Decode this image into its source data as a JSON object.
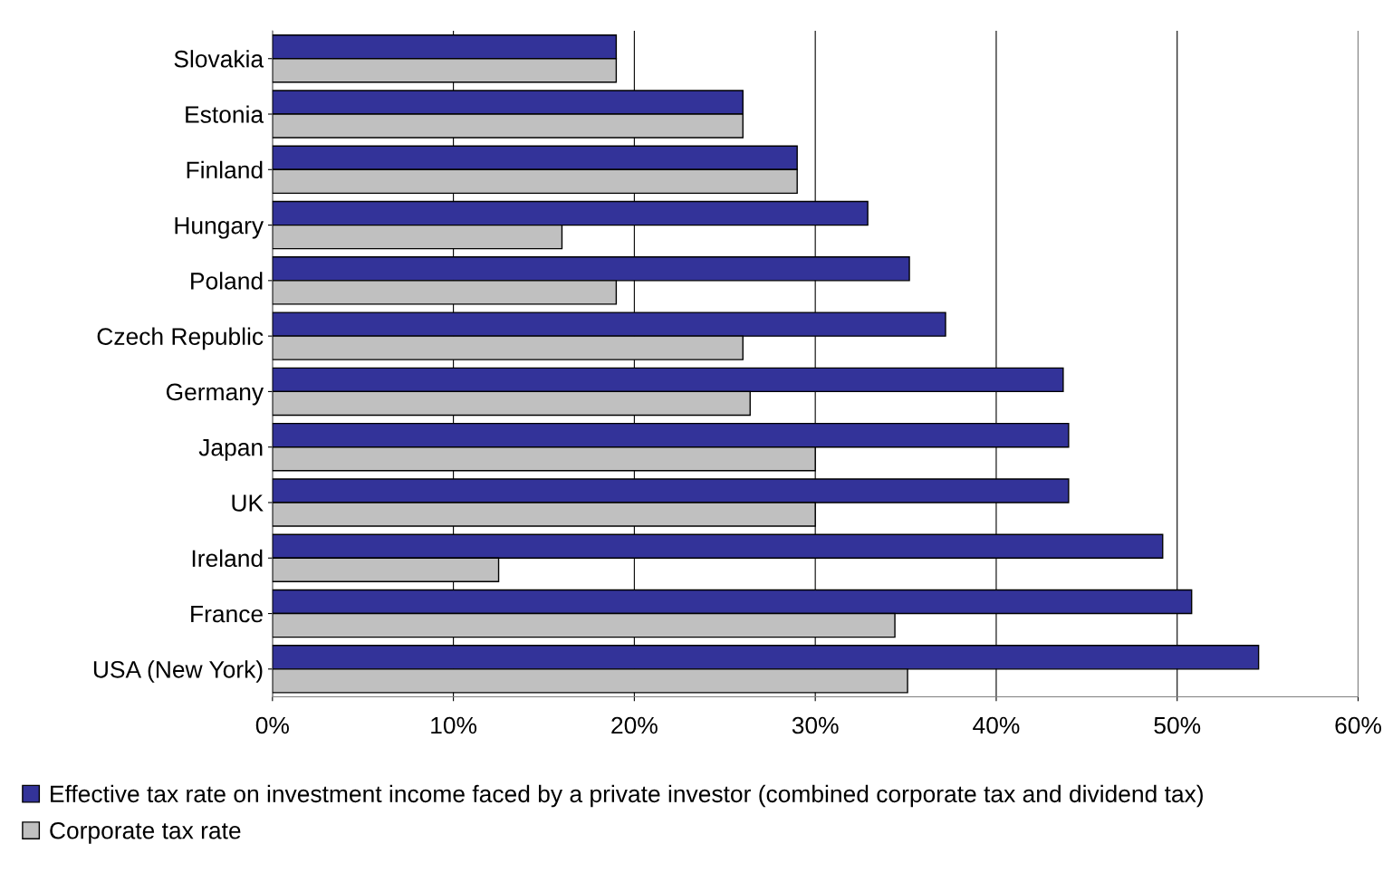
{
  "chart_data": {
    "type": "bar",
    "orientation": "horizontal",
    "categories": [
      "Slovakia",
      "Estonia",
      "Finland",
      "Hungary",
      "Poland",
      "Czech Republic",
      "Germany",
      "Japan",
      "UK",
      "Ireland",
      "France",
      "USA (New York)"
    ],
    "series": [
      {
        "name": "Effective tax rate on investment income faced by a private investor (combined corporate tax and dividend tax)",
        "color": "#333399",
        "values": [
          19,
          26,
          29,
          32.9,
          35.2,
          37.2,
          43.7,
          44,
          44,
          49.2,
          50.8,
          54.5
        ]
      },
      {
        "name": "Corporate tax rate",
        "color": "#c0c0c0",
        "values": [
          19,
          26,
          29,
          16,
          19,
          26,
          26.4,
          30,
          30,
          12.5,
          34.4,
          35.1
        ]
      }
    ],
    "xlim": [
      0,
      60
    ],
    "xticks": [
      {
        "value": 0,
        "label": "0%"
      },
      {
        "value": 10,
        "label": "10%"
      },
      {
        "value": 20,
        "label": "20%"
      },
      {
        "value": 30,
        "label": "30%"
      },
      {
        "value": 40,
        "label": "40%"
      },
      {
        "value": 50,
        "label": "50%"
      },
      {
        "value": 60,
        "label": "60%"
      }
    ],
    "grid": "x",
    "legend": "bottom"
  }
}
